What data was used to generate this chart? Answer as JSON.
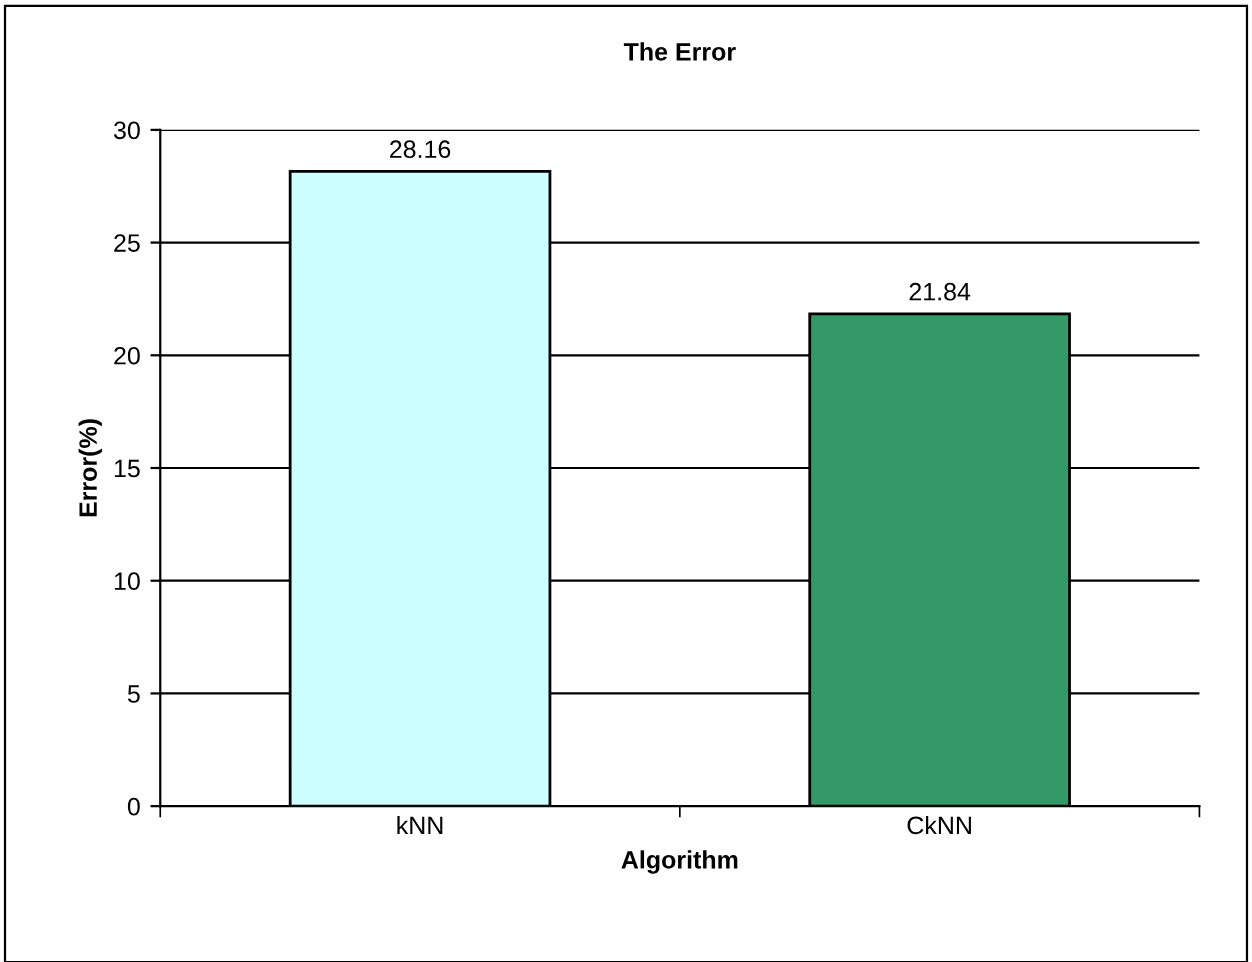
{
  "chart_data": {
    "type": "bar",
    "title": "The Error",
    "xlabel": "Algorithm",
    "ylabel": "Error(%)",
    "categories": [
      "kNN",
      "CkNN"
    ],
    "values": [
      28.16,
      21.84
    ],
    "colors": [
      "#ccffff",
      "#339966"
    ],
    "ylim": [
      0,
      30
    ],
    "yticks": [
      0,
      5,
      10,
      15,
      20,
      25,
      30
    ],
    "grid": "y",
    "data_labels": true
  }
}
